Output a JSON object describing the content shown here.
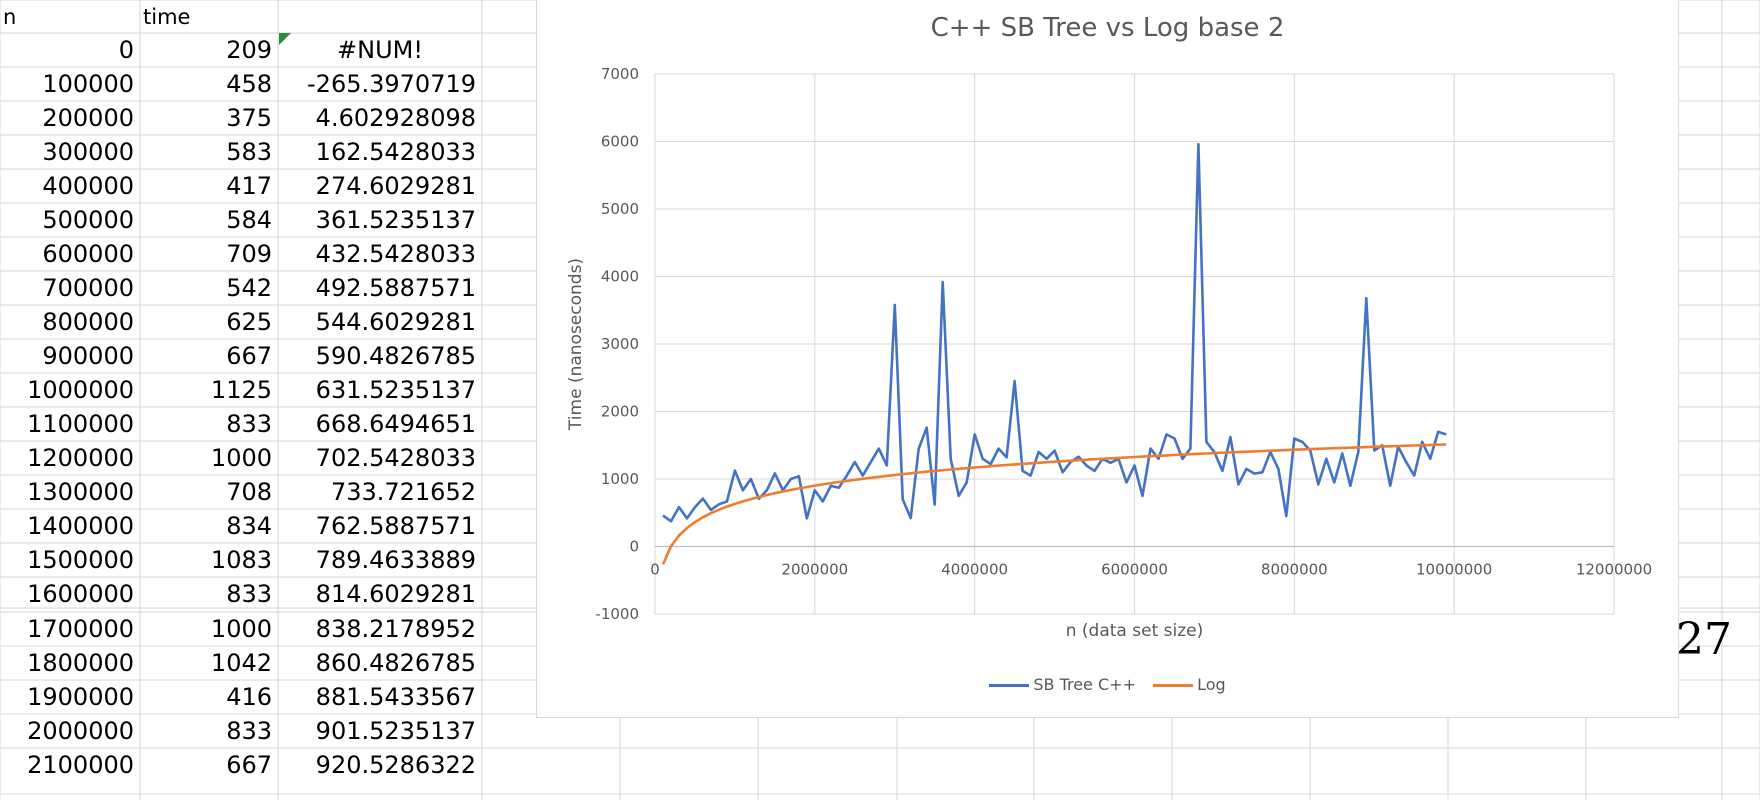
{
  "sheet": {
    "headers": {
      "col_a": "n",
      "col_b": "time",
      "col_c": ""
    },
    "rows": [
      [
        "0",
        "209",
        "#NUM!"
      ],
      [
        "100000",
        "458",
        "-265.3970719"
      ],
      [
        "200000",
        "375",
        "4.602928098"
      ],
      [
        "300000",
        "583",
        "162.5428033"
      ],
      [
        "400000",
        "417",
        "274.6029281"
      ],
      [
        "500000",
        "584",
        "361.5235137"
      ],
      [
        "600000",
        "709",
        "432.5428033"
      ],
      [
        "700000",
        "542",
        "492.5887571"
      ],
      [
        "800000",
        "625",
        "544.6029281"
      ],
      [
        "900000",
        "667",
        "590.4826785"
      ],
      [
        "1000000",
        "1125",
        "631.5235137"
      ],
      [
        "1100000",
        "833",
        "668.6494651"
      ],
      [
        "1200000",
        "1000",
        "702.5428033"
      ],
      [
        "1300000",
        "708",
        "733.721652"
      ],
      [
        "1400000",
        "834",
        "762.5887571"
      ],
      [
        "1500000",
        "1083",
        "789.4633889"
      ],
      [
        "1600000",
        "833",
        "814.6029281"
      ],
      [
        "1700000",
        "1000",
        "838.2178952"
      ],
      [
        "1800000",
        "1042",
        "860.4826785"
      ],
      [
        "1900000",
        "416",
        "881.5433567"
      ],
      [
        "2000000",
        "833",
        "901.5235137"
      ],
      [
        "2100000",
        "667",
        "920.5286322"
      ]
    ]
  },
  "side_fragment": "27",
  "chart_data": {
    "type": "line",
    "title": "C++ SB Tree vs Log base 2",
    "xlabel": "n (data set size)",
    "ylabel": "Time (nanoseconds)",
    "xlim": [
      0,
      12000000
    ],
    "ylim": [
      -1000,
      7000
    ],
    "x_ticks": [
      "0",
      "2000000",
      "4000000",
      "6000000",
      "8000000",
      "10000000",
      "12000000"
    ],
    "y_ticks": [
      "-1000",
      "0",
      "1000",
      "2000",
      "3000",
      "4000",
      "5000",
      "6000",
      "7000"
    ],
    "grid": true,
    "legend_position": "bottom",
    "colors": {
      "sb_tree": "#4472c4",
      "log": "#ed7d31"
    },
    "series": [
      {
        "name": "SB Tree C++",
        "x": [
          100000,
          200000,
          300000,
          400000,
          500000,
          600000,
          700000,
          800000,
          900000,
          1000000,
          1100000,
          1200000,
          1300000,
          1400000,
          1500000,
          1600000,
          1700000,
          1800000,
          1900000,
          2000000,
          2100000,
          2200000,
          2300000,
          2400000,
          2500000,
          2600000,
          2700000,
          2800000,
          2900000,
          3000000,
          3100000,
          3200000,
          3300000,
          3400000,
          3500000,
          3600000,
          3700000,
          3800000,
          3900000,
          4000000,
          4100000,
          4200000,
          4300000,
          4400000,
          4500000,
          4600000,
          4700000,
          4800000,
          4900000,
          5000000,
          5100000,
          5200000,
          5300000,
          5400000,
          5500000,
          5600000,
          5700000,
          5800000,
          5900000,
          6000000,
          6100000,
          6200000,
          6300000,
          6400000,
          6500000,
          6600000,
          6700000,
          6800000,
          6900000,
          7000000,
          7100000,
          7200000,
          7300000,
          7400000,
          7500000,
          7600000,
          7700000,
          7800000,
          7900000,
          8000000,
          8100000,
          8200000,
          8300000,
          8400000,
          8500000,
          8600000,
          8700000,
          8800000,
          8900000,
          9000000,
          9100000,
          9200000,
          9300000,
          9400000,
          9500000,
          9600000,
          9700000,
          9800000,
          9900000
        ],
        "values": [
          458,
          375,
          583,
          417,
          584,
          709,
          542,
          625,
          667,
          1125,
          833,
          1000,
          708,
          834,
          1083,
          833,
          1000,
          1042,
          416,
          833,
          667,
          900,
          870,
          1050,
          1250,
          1050,
          1250,
          1450,
          1200,
          3580,
          700,
          420,
          1450,
          1760,
          620,
          3920,
          1300,
          750,
          950,
          1660,
          1300,
          1220,
          1450,
          1320,
          2450,
          1120,
          1050,
          1400,
          1300,
          1420,
          1100,
          1250,
          1330,
          1200,
          1120,
          1300,
          1240,
          1300,
          950,
          1200,
          750,
          1450,
          1300,
          1660,
          1600,
          1300,
          1450,
          5960,
          1550,
          1400,
          1120,
          1620,
          920,
          1150,
          1080,
          1100,
          1400,
          1150,
          450,
          1600,
          1550,
          1420,
          920,
          1300,
          950,
          1380,
          900,
          1400,
          3680,
          1420,
          1500,
          900,
          1480,
          1250,
          1050,
          1550,
          1300,
          1700,
          1660
        ]
      },
      {
        "name": "Log",
        "x": [
          100000,
          200000,
          300000,
          400000,
          500000,
          600000,
          700000,
          800000,
          900000,
          1000000,
          1100000,
          1200000,
          1300000,
          1400000,
          1500000,
          1600000,
          1700000,
          1800000,
          1900000,
          2000000,
          2100000,
          2200000,
          2300000,
          2400000,
          2500000,
          2600000,
          2700000,
          2800000,
          2900000,
          3000000,
          3100000,
          3200000,
          3300000,
          3400000,
          3500000,
          3600000,
          3700000,
          3800000,
          3900000,
          4000000,
          4100000,
          4200000,
          4300000,
          4400000,
          4500000,
          4600000,
          4700000,
          4800000,
          4900000,
          5000000,
          5100000,
          5200000,
          5300000,
          5400000,
          5500000,
          5600000,
          5700000,
          5800000,
          5900000,
          6000000,
          6100000,
          6200000,
          6300000,
          6400000,
          6500000,
          6600000,
          6700000,
          6800000,
          6900000,
          7000000,
          7100000,
          7200000,
          7300000,
          7400000,
          7500000,
          7600000,
          7700000,
          7800000,
          7900000,
          8000000,
          8100000,
          8200000,
          8300000,
          8400000,
          8500000,
          8600000,
          8700000,
          8800000,
          8900000,
          9000000,
          9100000,
          9200000,
          9300000,
          9400000,
          9500000,
          9600000,
          9700000,
          9800000,
          9900000
        ],
        "values": [
          -265.4,
          4.6,
          162.5,
          274.6,
          361.5,
          432.5,
          492.6,
          544.6,
          590.5,
          631.5,
          668.6,
          702.5,
          733.7,
          762.6,
          789.5,
          814.6,
          838.2,
          860.5,
          881.5,
          901.5,
          920.5,
          938.6,
          955.9,
          972.4,
          988.3,
          1003.5,
          1018.2,
          1032.3,
          1045.9,
          1059.1,
          1071.8,
          1084.1,
          1096.0,
          1107.6,
          1118.8,
          1129.7,
          1140.3,
          1150.6,
          1160.7,
          1170.4,
          1180.0,
          1189.3,
          1198.4,
          1207.2,
          1215.9,
          1224.3,
          1232.6,
          1240.6,
          1248.6,
          1256.3,
          1263.9,
          1271.3,
          1278.6,
          1285.7,
          1292.7,
          1299.5,
          1306.2,
          1312.8,
          1319.3,
          1325.7,
          1331.9,
          1338.1,
          1344.1,
          1350.0,
          1355.9,
          1361.6,
          1367.3,
          1372.8,
          1378.3,
          1383.7,
          1389.0,
          1394.2,
          1399.4,
          1404.4,
          1409.4,
          1414.4,
          1419.2,
          1424.0,
          1428.7,
          1433.4,
          1438.0,
          1442.6,
          1447.0,
          1451.5,
          1455.8,
          1460.2,
          1464.4,
          1468.6,
          1472.8,
          1476.9,
          1480.9,
          1485.0,
          1488.9,
          1492.8,
          1496.7,
          1500.5,
          1504.3,
          1508.0,
          1511.7
        ]
      }
    ]
  }
}
